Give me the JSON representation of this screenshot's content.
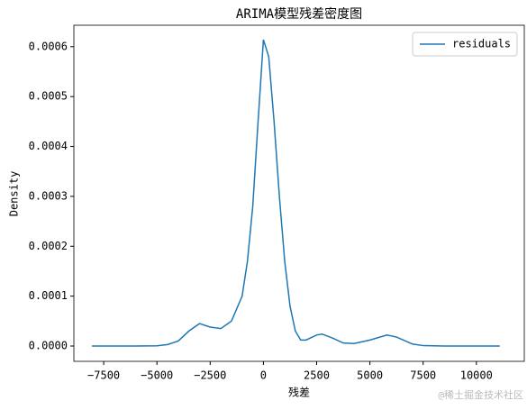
{
  "chart_data": {
    "type": "line",
    "title": "ARIMA模型残差密度图",
    "xlabel": "残差",
    "ylabel": "Density",
    "x": [
      -8050,
      -6000,
      -5000,
      -4500,
      -4000,
      -3500,
      -3000,
      -2500,
      -2000,
      -1500,
      -1000,
      -750,
      -500,
      -250,
      0,
      250,
      500,
      750,
      1000,
      1250,
      1500,
      1750,
      2000,
      2500,
      2750,
      3250,
      3750,
      4250,
      5000,
      5800,
      6250,
      7000,
      7500,
      8500,
      11100
    ],
    "series": [
      {
        "name": "residuals",
        "color": "#1f77b4",
        "values": [
          0,
          0,
          5e-07,
          3e-06,
          1e-05,
          3e-05,
          4.5e-05,
          3.8e-05,
          3.5e-05,
          5e-05,
          0.0001,
          0.00017,
          0.00028,
          0.00045,
          0.000614,
          0.00058,
          0.00045,
          0.0003,
          0.00017,
          8e-05,
          3e-05,
          1.2e-05,
          1.2e-05,
          2.2e-05,
          2.4e-05,
          1.6e-05,
          6e-06,
          5e-06,
          1.2e-05,
          2.2e-05,
          1.8e-05,
          4e-06,
          8e-07,
          0,
          0
        ]
      }
    ],
    "xlim": [
      -8900,
      12250
    ],
    "ylim": [
      -3.07e-05,
      0.000643
    ],
    "xticks": [
      {
        "value": -7500,
        "label": "−7500"
      },
      {
        "value": -5000,
        "label": "−5000"
      },
      {
        "value": -2500,
        "label": "−2500"
      },
      0,
      2500,
      5000,
      7500,
      10000
    ],
    "yticks": [
      {
        "value": 0,
        "label": "0.0000"
      },
      {
        "value": 0.0001,
        "label": "0.0001"
      },
      {
        "value": 0.0002,
        "label": "0.0002"
      },
      {
        "value": 0.0003,
        "label": "0.0003"
      },
      {
        "value": 0.0004,
        "label": "0.0004"
      },
      {
        "value": 0.0005,
        "label": "0.0005"
      },
      {
        "value": 0.0006,
        "label": "0.0006"
      }
    ],
    "legend": "upper right",
    "watermark": "@稀土掘金技术社区"
  }
}
